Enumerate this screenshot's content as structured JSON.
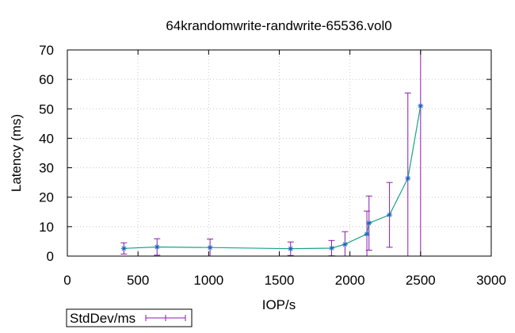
{
  "chart_data": {
    "type": "line",
    "title": "64krandomwrite-randwrite-65536.vol0",
    "xlabel": "IOP/s",
    "ylabel": "Latency (ms)",
    "xlim": [
      0,
      3000
    ],
    "ylim": [
      0,
      70
    ],
    "x_ticks": [
      0,
      500,
      1000,
      1500,
      2000,
      2500,
      3000
    ],
    "y_ticks": [
      0,
      10,
      20,
      30,
      40,
      50,
      60,
      70
    ],
    "grid": true,
    "legend_position": "bottom-left",
    "series": [
      {
        "name": "StdDev/ms",
        "line_color": "#1aa385",
        "marker_color": "#1f5fbf",
        "errorbar_color": "#8a1bb0",
        "points": [
          {
            "x": 400,
            "y": 2.6,
            "err": 1.9
          },
          {
            "x": 635,
            "y": 3.1,
            "err": 2.8
          },
          {
            "x": 1010,
            "y": 2.9,
            "err": 2.9
          },
          {
            "x": 1580,
            "y": 2.5,
            "err": 2.3
          },
          {
            "x": 1870,
            "y": 2.7,
            "err": 2.6
          },
          {
            "x": 1965,
            "y": 4.0,
            "err": 4.3
          },
          {
            "x": 2120,
            "y": 7.5,
            "err": 7.8
          },
          {
            "x": 2135,
            "y": 11.2,
            "err": 9.2
          },
          {
            "x": 2280,
            "y": 14.0,
            "err": 11.0
          },
          {
            "x": 2410,
            "y": 26.4,
            "err": 29.0
          },
          {
            "x": 2500,
            "y": 51.0,
            "err": 52.0
          }
        ]
      }
    ]
  }
}
